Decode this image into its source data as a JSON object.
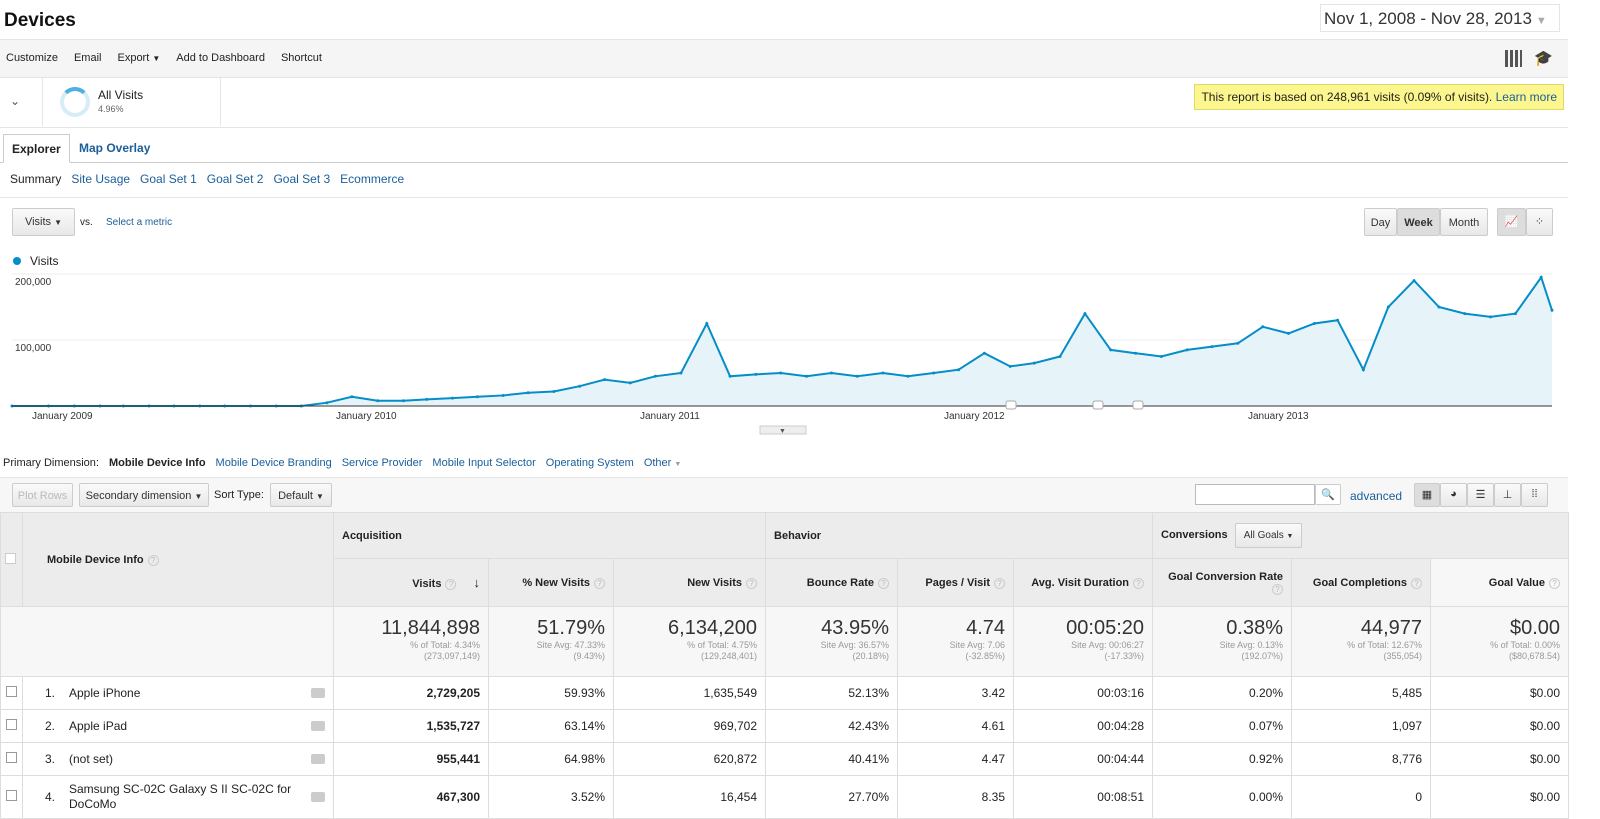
{
  "header": {
    "title": "Devices",
    "date_range": "Nov 1, 2008 - Nov 28, 2013"
  },
  "toolbar": {
    "customize": "Customize",
    "email": "Email",
    "export": "Export",
    "add_to_dashboard": "Add to Dashboard",
    "shortcut": "Shortcut"
  },
  "segment": {
    "name": "All Visits",
    "percent": "4.96%",
    "percent_value": 4.96
  },
  "banner": {
    "text": "This report is based on 248,961 visits (0.09% of visits).",
    "link": "Learn more"
  },
  "tabs": [
    {
      "label": "Explorer",
      "active": true
    },
    {
      "label": "Map Overlay",
      "active": false
    }
  ],
  "subtabs": [
    "Summary",
    "Site Usage",
    "Goal Set 1",
    "Goal Set 2",
    "Goal Set 3",
    "Ecommerce"
  ],
  "chart_controls": {
    "metric": "Visits",
    "vs": "vs.",
    "select_metric": "Select a metric",
    "day": "Day",
    "week": "Week",
    "month": "Month",
    "selected": "Week"
  },
  "chart_data": {
    "type": "area",
    "legend": "Visits",
    "color": "#058dc7",
    "y_ticks": [
      "100,000",
      "200,000"
    ],
    "x_ticks": [
      "January 2009",
      "January 2010",
      "January 2011",
      "January 2012",
      "January 2013"
    ],
    "ylim": [
      0,
      200000
    ],
    "x": [
      "2008-11",
      "2008-12",
      "2009-01",
      "2009-02",
      "2009-03",
      "2009-04",
      "2009-05",
      "2009-06",
      "2009-07",
      "2009-08",
      "2009-09",
      "2009-10",
      "2009-11",
      "2009-12",
      "2010-01",
      "2010-02",
      "2010-03",
      "2010-04",
      "2010-05",
      "2010-06",
      "2010-07",
      "2010-08",
      "2010-09",
      "2010-10",
      "2010-11",
      "2010-12",
      "2011-01",
      "2011-02",
      "2011-03",
      "2011-04",
      "2011-05",
      "2011-06",
      "2011-07",
      "2011-08",
      "2011-09",
      "2011-10",
      "2011-11",
      "2011-12",
      "2012-01",
      "2012-02",
      "2012-03",
      "2012-04",
      "2012-05",
      "2012-06",
      "2012-07",
      "2012-08",
      "2012-09",
      "2012-10",
      "2012-11",
      "2012-12",
      "2013-01",
      "2013-02",
      "2013-03",
      "2013-04",
      "2013-05",
      "2013-06",
      "2013-07",
      "2013-08",
      "2013-09",
      "2013-10",
      "2013-11",
      "2013-11-28"
    ],
    "values": [
      0,
      0,
      0,
      0,
      0,
      0,
      0,
      0,
      0,
      0,
      0,
      0,
      5000,
      14000,
      8000,
      8000,
      10000,
      12000,
      14000,
      16000,
      20000,
      22000,
      30000,
      40000,
      35000,
      45000,
      50000,
      125000,
      45000,
      48000,
      50000,
      45000,
      50000,
      45000,
      50000,
      45000,
      50000,
      55000,
      80000,
      60000,
      65000,
      75000,
      140000,
      85000,
      80000,
      75000,
      85000,
      90000,
      95000,
      120000,
      110000,
      125000,
      130000,
      55000,
      150000,
      190000,
      150000,
      140000,
      135000,
      140000,
      195000,
      145000
    ]
  },
  "dimensions": {
    "label": "Primary Dimension:",
    "items": [
      "Mobile Device Info",
      "Mobile Device Branding",
      "Service Provider",
      "Mobile Input Selector",
      "Operating System",
      "Other"
    ]
  },
  "table_controls": {
    "plot_rows": "Plot Rows",
    "secondary": "Secondary dimension",
    "sort_type_label": "Sort Type:",
    "sort_type": "Default",
    "advanced": "advanced",
    "search_value": ""
  },
  "table": {
    "dimension_header": "Mobile Device Info",
    "groups": {
      "acquisition": "Acquisition",
      "behavior": "Behavior",
      "conversions": "Conversions",
      "goals_select": "All Goals"
    },
    "columns": [
      "Visits",
      "% New Visits",
      "New Visits",
      "Bounce Rate",
      "Pages / Visit",
      "Avg. Visit Duration",
      "Goal Conversion Rate",
      "Goal Completions",
      "Goal Value"
    ],
    "totals": [
      {
        "value": "11,844,898",
        "line1": "% of Total: 4.34%",
        "line2": "(273,097,149)"
      },
      {
        "value": "51.79%",
        "line1": "Site Avg: 47.33%",
        "line2": "(9.43%)"
      },
      {
        "value": "6,134,200",
        "line1": "% of Total: 4.75%",
        "line2": "(129,248,401)"
      },
      {
        "value": "43.95%",
        "line1": "Site Avg: 36.57%",
        "line2": "(20.18%)"
      },
      {
        "value": "4.74",
        "line1": "Site Avg: 7.06",
        "line2": "(-32.85%)"
      },
      {
        "value": "00:05:20",
        "line1": "Site Avg: 00:06:27",
        "line2": "(-17.33%)"
      },
      {
        "value": "0.38%",
        "line1": "Site Avg: 0.13%",
        "line2": "(192.07%)"
      },
      {
        "value": "44,977",
        "line1": "% of Total: 12.67%",
        "line2": "(355,054)"
      },
      {
        "value": "$0.00",
        "line1": "% of Total: 0.00%",
        "line2": "($80,678.54)"
      }
    ],
    "rows": [
      {
        "num": "1.",
        "name": "Apple iPhone",
        "cells": [
          "2,729,205",
          "59.93%",
          "1,635,549",
          "52.13%",
          "3.42",
          "00:03:16",
          "0.20%",
          "5,485",
          "$0.00"
        ]
      },
      {
        "num": "2.",
        "name": "Apple iPad",
        "cells": [
          "1,535,727",
          "63.14%",
          "969,702",
          "42.43%",
          "4.61",
          "00:04:28",
          "0.07%",
          "1,097",
          "$0.00"
        ]
      },
      {
        "num": "3.",
        "name": "(not set)",
        "cells": [
          "955,441",
          "64.98%",
          "620,872",
          "40.41%",
          "4.47",
          "00:04:44",
          "0.92%",
          "8,776",
          "$0.00"
        ]
      },
      {
        "num": "4.",
        "name": "Samsung SC-02C Galaxy S II SC-02C for DoCoMo",
        "cells": [
          "467,300",
          "3.52%",
          "16,454",
          "27.70%",
          "8.35",
          "00:08:51",
          "0.00%",
          "0",
          "$0.00"
        ]
      }
    ]
  }
}
